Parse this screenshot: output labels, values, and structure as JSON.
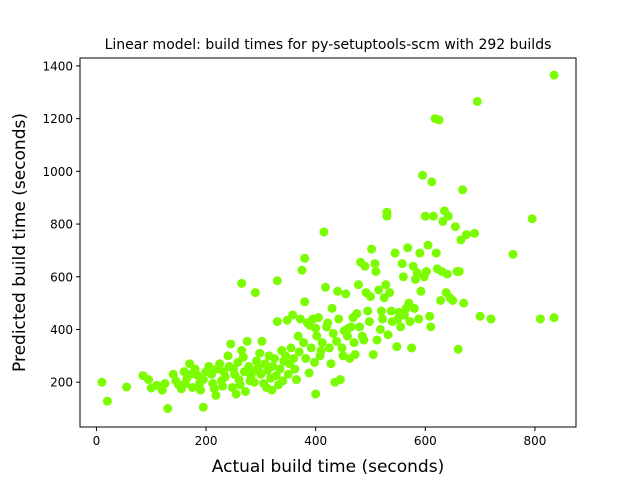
{
  "chart_data": {
    "type": "scatter",
    "title": "Linear model: build times for py-setuptools-scm with 292 builds",
    "xlabel": "Actual build time (seconds)",
    "ylabel": "Predicted build time (seconds)",
    "xlim": [
      -30,
      875
    ],
    "ylim": [
      30,
      1430
    ],
    "xticks": [
      0,
      200,
      400,
      600,
      800
    ],
    "yticks": [
      200,
      400,
      600,
      800,
      1000,
      1200,
      1400
    ],
    "grid": false,
    "series": [
      {
        "color": "#7cfc00",
        "points": [
          [
            10,
            200
          ],
          [
            20,
            128
          ],
          [
            55,
            182
          ],
          [
            85,
            225
          ],
          [
            95,
            210
          ],
          [
            100,
            178
          ],
          [
            110,
            188
          ],
          [
            120,
            170
          ],
          [
            125,
            195
          ],
          [
            130,
            100
          ],
          [
            140,
            230
          ],
          [
            145,
            205
          ],
          [
            150,
            190
          ],
          [
            155,
            175
          ],
          [
            160,
            240
          ],
          [
            162,
            195
          ],
          [
            165,
            215
          ],
          [
            170,
            270
          ],
          [
            172,
            230
          ],
          [
            175,
            180
          ],
          [
            180,
            250
          ],
          [
            185,
            225
          ],
          [
            188,
            195
          ],
          [
            190,
            170
          ],
          [
            195,
            210
          ],
          [
            195,
            105
          ],
          [
            200,
            240
          ],
          [
            205,
            260
          ],
          [
            210,
            230
          ],
          [
            212,
            195
          ],
          [
            215,
            175
          ],
          [
            218,
            150
          ],
          [
            220,
            250
          ],
          [
            225,
            270
          ],
          [
            228,
            205
          ],
          [
            230,
            185
          ],
          [
            232,
            240
          ],
          [
            235,
            220
          ],
          [
            240,
            300
          ],
          [
            242,
            260
          ],
          [
            245,
            345
          ],
          [
            248,
            180
          ],
          [
            250,
            250
          ],
          [
            252,
            230
          ],
          [
            255,
            155
          ],
          [
            258,
            275
          ],
          [
            260,
            210
          ],
          [
            262,
            190
          ],
          [
            265,
            320
          ],
          [
            265,
            575
          ],
          [
            268,
            295
          ],
          [
            270,
            240
          ],
          [
            272,
            165
          ],
          [
            275,
            355
          ],
          [
            278,
            260
          ],
          [
            280,
            205
          ],
          [
            282,
            225
          ],
          [
            285,
            240
          ],
          [
            288,
            200
          ],
          [
            290,
            540
          ],
          [
            292,
            280
          ],
          [
            295,
            255
          ],
          [
            298,
            310
          ],
          [
            300,
            230
          ],
          [
            302,
            355
          ],
          [
            305,
            195
          ],
          [
            308,
            270
          ],
          [
            310,
            180
          ],
          [
            312,
            245
          ],
          [
            315,
            300
          ],
          [
            318,
            215
          ],
          [
            320,
            170
          ],
          [
            322,
            260
          ],
          [
            325,
            290
          ],
          [
            328,
            225
          ],
          [
            330,
            430
          ],
          [
            330,
            585
          ],
          [
            332,
            190
          ],
          [
            335,
            250
          ],
          [
            338,
            320
          ],
          [
            340,
            205
          ],
          [
            342,
            280
          ],
          [
            345,
            300
          ],
          [
            348,
            435
          ],
          [
            350,
            230
          ],
          [
            352,
            270
          ],
          [
            355,
            330
          ],
          [
            358,
            455
          ],
          [
            360,
            290
          ],
          [
            362,
            250
          ],
          [
            365,
            210
          ],
          [
            368,
            375
          ],
          [
            370,
            315
          ],
          [
            372,
            440
          ],
          [
            375,
            625
          ],
          [
            378,
            350
          ],
          [
            380,
            505
          ],
          [
            380,
            670
          ],
          [
            382,
            290
          ],
          [
            385,
            425
          ],
          [
            388,
            235
          ],
          [
            390,
            415
          ],
          [
            392,
            330
          ],
          [
            395,
            440
          ],
          [
            398,
            275
          ],
          [
            400,
            405
          ],
          [
            400,
            155
          ],
          [
            402,
            375
          ],
          [
            405,
            445
          ],
          [
            408,
            300
          ],
          [
            410,
            320
          ],
          [
            412,
            350
          ],
          [
            415,
            770
          ],
          [
            418,
            560
          ],
          [
            420,
            410
          ],
          [
            422,
            425
          ],
          [
            425,
            330
          ],
          [
            428,
            270
          ],
          [
            430,
            480
          ],
          [
            432,
            385
          ],
          [
            435,
            200
          ],
          [
            438,
            355
          ],
          [
            440,
            545
          ],
          [
            442,
            440
          ],
          [
            445,
            210
          ],
          [
            448,
            330
          ],
          [
            450,
            300
          ],
          [
            452,
            395
          ],
          [
            455,
            535
          ],
          [
            458,
            375
          ],
          [
            460,
            405
          ],
          [
            462,
            290
          ],
          [
            465,
            410
          ],
          [
            468,
            445
          ],
          [
            470,
            350
          ],
          [
            472,
            305
          ],
          [
            475,
            460
          ],
          [
            478,
            570
          ],
          [
            480,
            410
          ],
          [
            482,
            655
          ],
          [
            485,
            375
          ],
          [
            488,
            360
          ],
          [
            490,
            640
          ],
          [
            492,
            540
          ],
          [
            495,
            470
          ],
          [
            498,
            430
          ],
          [
            500,
            525
          ],
          [
            502,
            705
          ],
          [
            505,
            305
          ],
          [
            508,
            650
          ],
          [
            510,
            620
          ],
          [
            512,
            360
          ],
          [
            515,
            550
          ],
          [
            518,
            400
          ],
          [
            520,
            470
          ],
          [
            522,
            440
          ],
          [
            525,
            520
          ],
          [
            528,
            570
          ],
          [
            530,
            830
          ],
          [
            530,
            845
          ],
          [
            532,
            380
          ],
          [
            535,
            540
          ],
          [
            538,
            470
          ],
          [
            540,
            430
          ],
          [
            545,
            690
          ],
          [
            548,
            335
          ],
          [
            550,
            440
          ],
          [
            552,
            465
          ],
          [
            555,
            410
          ],
          [
            558,
            650
          ],
          [
            560,
            600
          ],
          [
            562,
            455
          ],
          [
            565,
            480
          ],
          [
            568,
            710
          ],
          [
            570,
            500
          ],
          [
            572,
            430
          ],
          [
            575,
            330
          ],
          [
            578,
            640
          ],
          [
            580,
            480
          ],
          [
            582,
            590
          ],
          [
            585,
            615
          ],
          [
            588,
            440
          ],
          [
            590,
            690
          ],
          [
            592,
            545
          ],
          [
            595,
            985
          ],
          [
            598,
            600
          ],
          [
            600,
            830
          ],
          [
            602,
            620
          ],
          [
            605,
            720
          ],
          [
            608,
            450
          ],
          [
            610,
            410
          ],
          [
            612,
            960
          ],
          [
            615,
            830
          ],
          [
            618,
            1200
          ],
          [
            620,
            690
          ],
          [
            622,
            630
          ],
          [
            625,
            1195
          ],
          [
            628,
            510
          ],
          [
            630,
            620
          ],
          [
            632,
            810
          ],
          [
            635,
            850
          ],
          [
            638,
            540
          ],
          [
            640,
            610
          ],
          [
            642,
            830
          ],
          [
            645,
            520
          ],
          [
            650,
            510
          ],
          [
            655,
            790
          ],
          [
            658,
            620
          ],
          [
            660,
            325
          ],
          [
            662,
            620
          ],
          [
            665,
            740
          ],
          [
            668,
            930
          ],
          [
            670,
            500
          ],
          [
            675,
            760
          ],
          [
            690,
            765
          ],
          [
            695,
            1265
          ],
          [
            700,
            450
          ],
          [
            720,
            440
          ],
          [
            760,
            685
          ],
          [
            795,
            820
          ],
          [
            810,
            440
          ],
          [
            835,
            1365
          ],
          [
            835,
            445
          ]
        ]
      }
    ]
  }
}
